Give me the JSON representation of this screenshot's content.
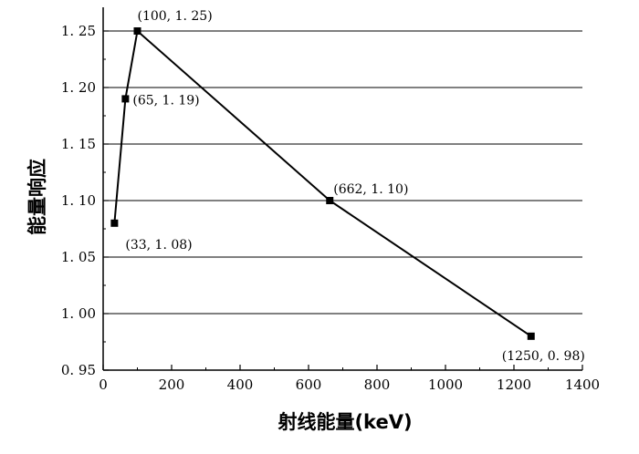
{
  "chart_data": {
    "type": "line",
    "title": "",
    "xlabel": "射线能量(keV)",
    "ylabel": "能量响应",
    "xlim": [
      0,
      1400
    ],
    "ylim": [
      0.95,
      1.27
    ],
    "x_ticks": [
      0,
      200,
      400,
      600,
      800,
      1000,
      1200,
      1400
    ],
    "x_tick_labels": [
      "0",
      "200",
      "400",
      "600",
      "800",
      "1000",
      "1200",
      "1400"
    ],
    "y_ticks": [
      0.95,
      1.0,
      1.05,
      1.1,
      1.15,
      1.2,
      1.25
    ],
    "y_tick_labels": [
      "0. 95",
      "1. 00",
      "1. 05",
      "1. 10",
      "1. 15",
      "1. 20",
      "1. 25"
    ],
    "grid": "horizontal",
    "series": [
      {
        "x": [
          33,
          65,
          100,
          662,
          1250
        ],
        "y": [
          1.08,
          1.19,
          1.25,
          1.1,
          0.98
        ],
        "labels": [
          "(33, 1. 08)",
          "(65, 1. 19)",
          "(100, 1. 25)",
          "(662, 1. 10)",
          "(1250, 0. 98)"
        ]
      }
    ]
  }
}
